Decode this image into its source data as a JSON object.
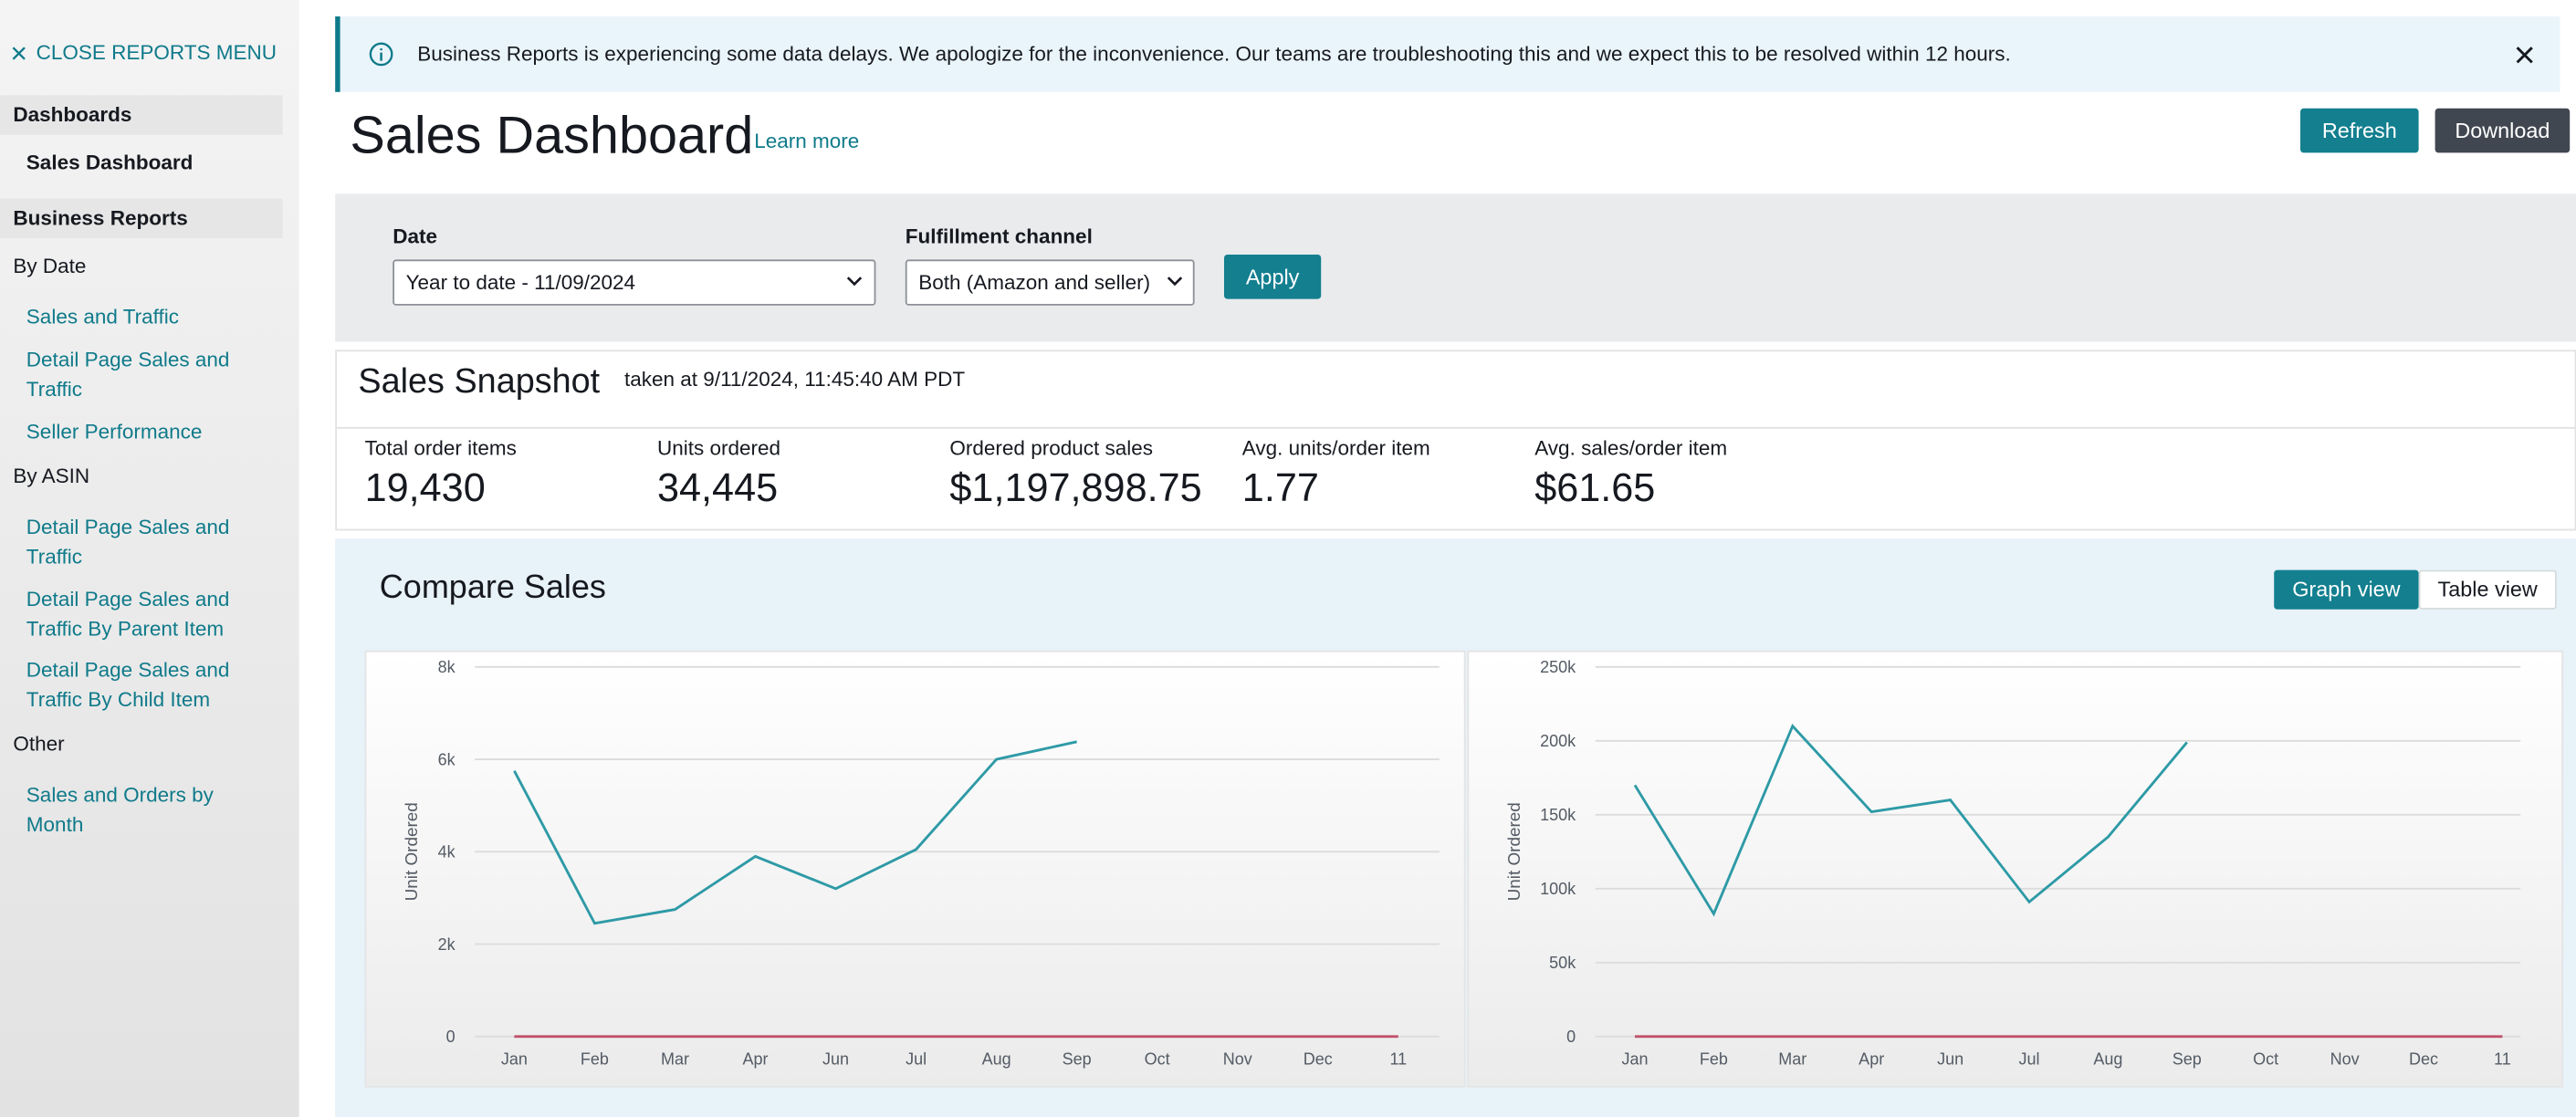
{
  "sidebar": {
    "close": "CLOSE REPORTS MENU",
    "dashboards": {
      "title": "Dashboards",
      "items": [
        "Sales Dashboard"
      ]
    },
    "business_reports": {
      "title": "Business Reports",
      "groups": [
        {
          "title": "By Date",
          "items": [
            "Sales and Traffic",
            "Detail Page Sales and Traffic",
            "Seller Performance"
          ]
        },
        {
          "title": "By ASIN",
          "items": [
            "Detail Page Sales and Traffic",
            "Detail Page Sales and Traffic By Parent Item",
            "Detail Page Sales and Traffic By Child Item"
          ]
        },
        {
          "title": "Other",
          "items": [
            "Sales and Orders by Month"
          ]
        }
      ]
    }
  },
  "banner": {
    "text": "Business Reports is experiencing some data delays. We apologize for the inconvenience. Our teams are troubleshooting this and we expect this to be resolved within 12 hours."
  },
  "header": {
    "title": "Sales Dashboard",
    "link": "Learn more",
    "buttons": [
      "Refresh",
      "Download"
    ]
  },
  "filters": {
    "date_label": "Date",
    "date_value": "Year to date - 11/09/2024",
    "channel_label": "Fulfillment channel",
    "channel_value": "Both (Amazon and seller)",
    "apply": "Apply"
  },
  "snapshot": {
    "title": "Sales Snapshot",
    "taken": "taken at 9/11/2024, 11:45:40 AM PDT",
    "metrics": [
      {
        "label": "Total order items",
        "value": "19,430"
      },
      {
        "label": "Units ordered",
        "value": "34,445"
      },
      {
        "label": "Ordered product sales",
        "value": "$1,197,898.75"
      },
      {
        "label": "Avg. units/order item",
        "value": "1.77"
      },
      {
        "label": "Avg. sales/order item",
        "value": "$61.65"
      }
    ]
  },
  "compare": {
    "title": "Compare Sales",
    "views": [
      "Graph view",
      "Table view"
    ]
  },
  "chart_data": [
    {
      "type": "line",
      "y_label": "Unit Ordered",
      "categories": [
        "Jan",
        "Feb",
        "Mar",
        "Apr",
        "Jun",
        "Jul",
        "Aug",
        "Sep",
        "Oct",
        "Nov",
        "Dec",
        "11"
      ],
      "ylim": [
        0,
        8000
      ],
      "yticks": [
        0,
        {
          "value": 2000,
          "label": "2k"
        },
        {
          "value": 4000,
          "label": "4k"
        },
        {
          "value": 6000,
          "label": "6k"
        },
        {
          "value": 8000,
          "label": "8k"
        }
      ],
      "grid": true,
      "series": [
        {
          "color": "#2e9aa6",
          "values": [
            5750,
            2450,
            2750,
            3900,
            3200,
            4050,
            6000,
            6380,
            null,
            null,
            null,
            null
          ]
        },
        {
          "color": "#c0506a",
          "values": [
            0,
            0,
            0,
            0,
            0,
            0,
            0,
            0,
            0,
            0,
            0,
            0
          ]
        }
      ]
    },
    {
      "type": "line",
      "y_label": "Unit Ordered",
      "categories": [
        "Jan",
        "Feb",
        "Mar",
        "Apr",
        "Jun",
        "Jul",
        "Aug",
        "Sep",
        "Oct",
        "Nov",
        "Dec",
        "11"
      ],
      "ylim": [
        0,
        250000
      ],
      "yticks": [
        0,
        {
          "value": 50000,
          "label": "50k"
        },
        {
          "value": 100000,
          "label": "100k"
        },
        {
          "value": 150000,
          "label": "150k"
        },
        {
          "value": 200000,
          "label": "200k"
        },
        {
          "value": 250000,
          "label": "250k"
        }
      ],
      "grid": true,
      "series": [
        {
          "color": "#2e9aa6",
          "values": [
            170000,
            83000,
            210000,
            152000,
            160000,
            91000,
            135000,
            199000,
            null,
            null,
            null,
            null
          ]
        },
        {
          "color": "#c0506a",
          "values": [
            0,
            0,
            0,
            0,
            0,
            0,
            0,
            0,
            0,
            0,
            0,
            0
          ]
        }
      ]
    }
  ]
}
